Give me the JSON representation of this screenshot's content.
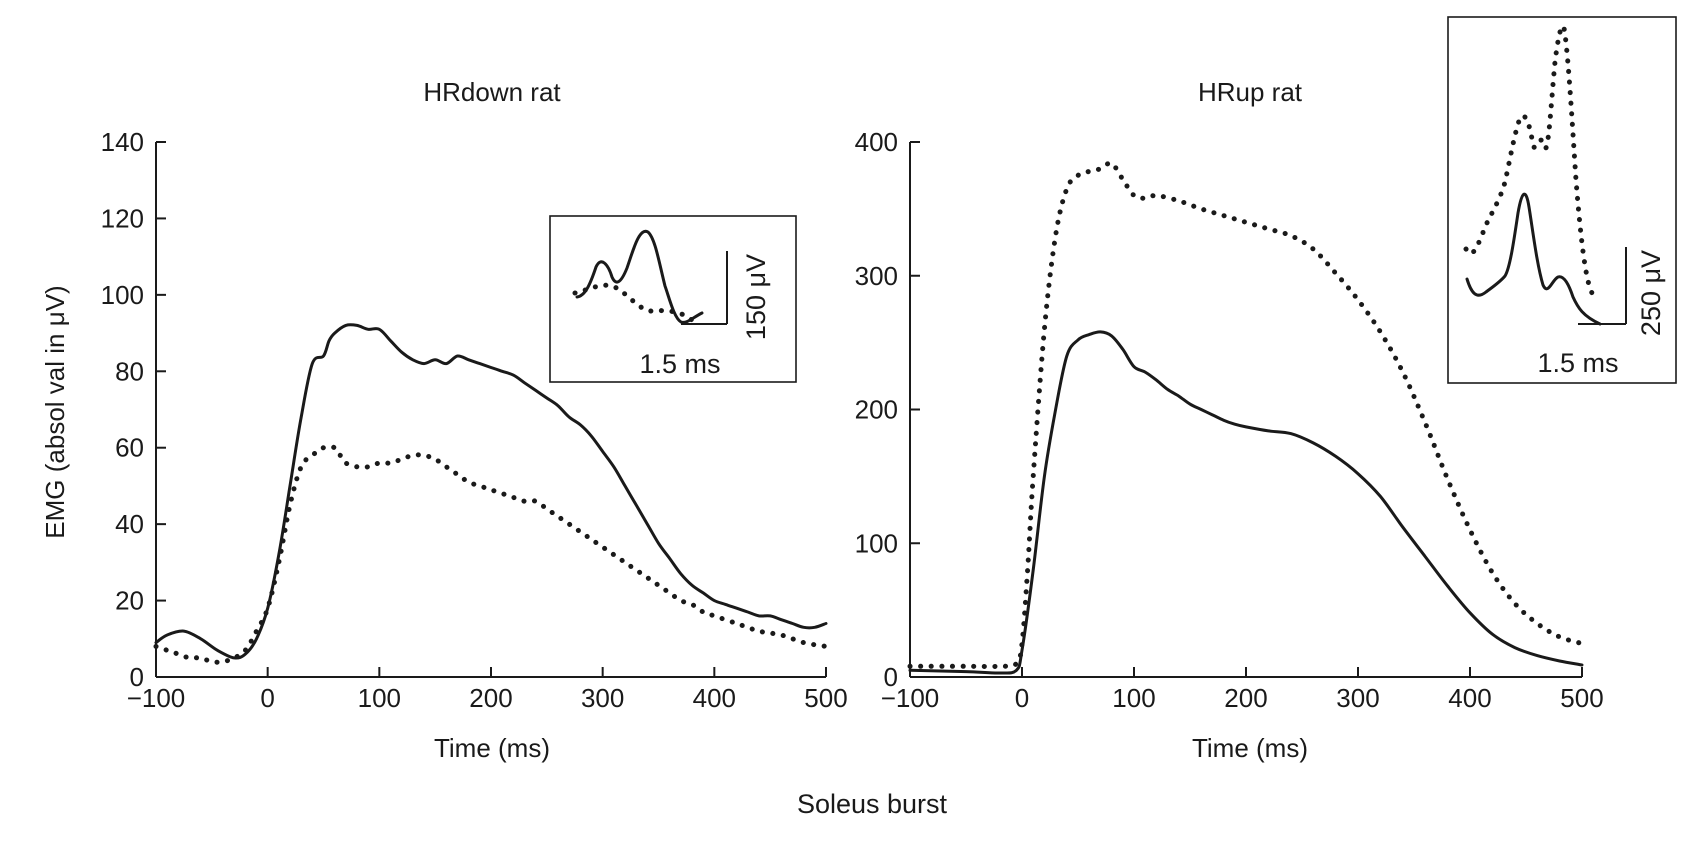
{
  "figure_caption": "Soleus burst",
  "chart_data": [
    {
      "type": "line",
      "title": "HRdown rat",
      "xlabel": "Time (ms)",
      "ylabel": "EMG (absol val in μV)",
      "xlim": [
        -100,
        500
      ],
      "ylim": [
        0,
        140
      ],
      "xticks": [
        -100,
        0,
        100,
        200,
        300,
        400,
        500
      ],
      "yticks": [
        0,
        20,
        40,
        60,
        80,
        100,
        120,
        140
      ],
      "xtick_labels": [
        "−100",
        "0",
        "100",
        "200",
        "300",
        "400",
        "500"
      ],
      "ytick_labels": [
        "0",
        "20",
        "40",
        "60",
        "80",
        "100",
        "120",
        "140"
      ],
      "series": [
        {
          "name": "solid",
          "style": "solid",
          "x": [
            -100,
            -90,
            -75,
            -60,
            -45,
            -30,
            -20,
            -10,
            0,
            10,
            20,
            30,
            40,
            50,
            55,
            60,
            70,
            80,
            90,
            100,
            110,
            120,
            130,
            140,
            150,
            160,
            170,
            180,
            190,
            200,
            210,
            220,
            230,
            240,
            250,
            260,
            270,
            280,
            290,
            300,
            310,
            320,
            330,
            340,
            350,
            360,
            370,
            380,
            390,
            400,
            410,
            420,
            430,
            440,
            450,
            460,
            470,
            480,
            490,
            500
          ],
          "y": [
            9,
            11,
            12,
            10,
            7,
            5,
            6,
            10,
            18,
            32,
            50,
            68,
            82,
            84,
            88,
            90,
            92,
            92,
            91,
            91,
            88,
            85,
            83,
            82,
            83,
            82,
            84,
            83,
            82,
            81,
            80,
            79,
            77,
            75,
            73,
            71,
            68,
            66,
            63,
            59,
            55,
            50,
            45,
            40,
            35,
            31,
            27,
            24,
            22,
            20,
            19,
            18,
            17,
            16,
            16,
            15,
            14,
            13,
            13,
            14
          ]
        },
        {
          "name": "dotted",
          "style": "dotted",
          "x": [
            -100,
            -90,
            -80,
            -70,
            -60,
            -50,
            -40,
            -30,
            -20,
            -10,
            0,
            10,
            20,
            30,
            40,
            50,
            60,
            65,
            70,
            80,
            90,
            100,
            110,
            120,
            130,
            140,
            150,
            160,
            170,
            180,
            190,
            200,
            210,
            220,
            230,
            240,
            250,
            260,
            270,
            280,
            290,
            300,
            310,
            320,
            330,
            340,
            350,
            360,
            370,
            380,
            390,
            400,
            420,
            440,
            460,
            480,
            500
          ],
          "y": [
            8,
            7,
            6,
            5,
            5,
            4,
            4,
            5,
            7,
            12,
            18,
            30,
            45,
            55,
            58,
            60,
            60,
            58,
            56,
            55,
            55,
            56,
            56,
            57,
            58,
            58,
            57,
            55,
            53,
            51,
            50,
            49,
            48,
            47,
            46,
            46,
            44,
            42,
            40,
            38,
            36,
            34,
            32,
            30,
            28,
            26,
            24,
            22,
            20,
            19,
            17,
            16,
            14,
            12,
            11,
            9,
            8
          ]
        }
      ],
      "inset": {
        "scale_time_label": "1.5 ms",
        "scale_voltage_label": "150 μV"
      }
    },
    {
      "type": "line",
      "title": "HRup rat",
      "xlabel": "Time (ms)",
      "ylabel": "",
      "xlim": [
        -100,
        500
      ],
      "ylim": [
        0,
        400
      ],
      "xticks": [
        -100,
        0,
        100,
        200,
        300,
        400,
        500
      ],
      "yticks": [
        0,
        100,
        200,
        300,
        400
      ],
      "xtick_labels": [
        "−100",
        "0",
        "100",
        "200",
        "300",
        "400",
        "500"
      ],
      "ytick_labels": [
        "0",
        "100",
        "200",
        "300",
        "400"
      ],
      "series": [
        {
          "name": "solid",
          "style": "solid",
          "x": [
            -100,
            -50,
            -20,
            -5,
            0,
            10,
            20,
            30,
            40,
            50,
            60,
            70,
            80,
            90,
            100,
            110,
            120,
            130,
            140,
            150,
            160,
            170,
            180,
            190,
            200,
            220,
            240,
            260,
            280,
            300,
            320,
            340,
            360,
            380,
            400,
            420,
            440,
            460,
            480,
            500
          ],
          "y": [
            5,
            4,
            3,
            5,
            20,
            80,
            150,
            200,
            240,
            252,
            256,
            258,
            255,
            245,
            232,
            228,
            222,
            215,
            210,
            204,
            200,
            196,
            192,
            189,
            187,
            184,
            182,
            175,
            165,
            152,
            135,
            112,
            90,
            68,
            48,
            32,
            22,
            16,
            12,
            9
          ]
        },
        {
          "name": "dotted",
          "style": "dotted",
          "x": [
            -100,
            -50,
            -20,
            -5,
            0,
            5,
            10,
            20,
            30,
            40,
            50,
            60,
            70,
            80,
            90,
            100,
            110,
            120,
            140,
            160,
            180,
            200,
            220,
            240,
            260,
            280,
            300,
            320,
            340,
            360,
            380,
            400,
            420,
            440,
            460,
            480,
            500
          ],
          "y": [
            8,
            8,
            8,
            10,
            25,
            80,
            150,
            260,
            330,
            365,
            375,
            378,
            380,
            384,
            372,
            360,
            358,
            360,
            356,
            350,
            345,
            340,
            335,
            330,
            320,
            302,
            282,
            258,
            228,
            190,
            148,
            110,
            78,
            55,
            40,
            30,
            25
          ]
        }
      ],
      "inset": {
        "scale_time_label": "1.5 ms",
        "scale_voltage_label": "250 μV"
      }
    }
  ]
}
